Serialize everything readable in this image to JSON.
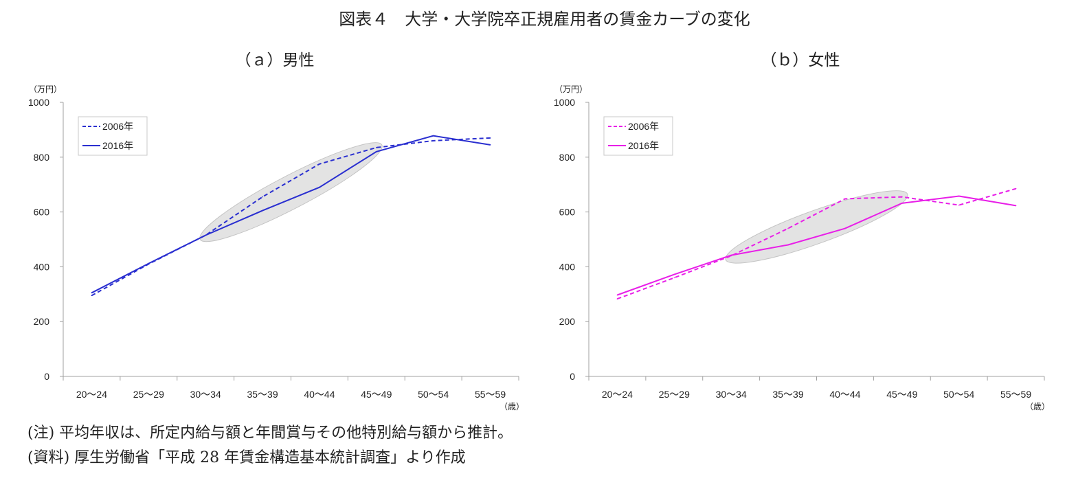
{
  "figure_title": "図表４　大学・大学院卒正規雇用者の賃金カーブの変化",
  "notes": {
    "note": "(注) 平均年収は、所定内給与額と年間賞与その他特別給与額から推計。",
    "source": "(資料) 厚生労働省「平成 28 年賃金構造基本統計調査」より作成"
  },
  "chart_data": [
    {
      "type": "line",
      "title": "（ａ）男性",
      "y_unit": "（万円）",
      "x_unit": "（歳）",
      "categories": [
        "20〜24",
        "25〜29",
        "30〜34",
        "35〜39",
        "40〜44",
        "45〜49",
        "50〜54",
        "55〜59"
      ],
      "ylim": [
        0,
        1000
      ],
      "yticks": [
        0,
        200,
        400,
        600,
        800,
        1000
      ],
      "grid": false,
      "legend_position": "top-left",
      "color": "#2a2fd0",
      "highlight": {
        "from_category": "30〜34",
        "to_category": "45〜49",
        "color": "#d9d9d9"
      },
      "series": [
        {
          "name": "2006年",
          "style": "dashed",
          "values": [
            295,
            410,
            515,
            655,
            775,
            835,
            860,
            870
          ]
        },
        {
          "name": "2016年",
          "style": "solid",
          "values": [
            305,
            412,
            515,
            605,
            690,
            820,
            878,
            845
          ]
        }
      ]
    },
    {
      "type": "line",
      "title": "（ｂ）女性",
      "y_unit": "（万円）",
      "x_unit": "（歳）",
      "categories": [
        "20〜24",
        "25〜29",
        "30〜34",
        "35〜39",
        "40〜44",
        "45〜49",
        "50〜54",
        "55〜59"
      ],
      "ylim": [
        0,
        1000
      ],
      "yticks": [
        0,
        200,
        400,
        600,
        800,
        1000
      ],
      "grid": false,
      "legend_position": "top-left",
      "color": "#e81fe8",
      "highlight": {
        "from_category": "30〜34",
        "to_category": "45〜49",
        "color": "#d9d9d9"
      },
      "series": [
        {
          "name": "2006年",
          "style": "dashed",
          "values": [
            283,
            360,
            440,
            540,
            648,
            655,
            625,
            685
          ]
        },
        {
          "name": "2016年",
          "style": "solid",
          "values": [
            297,
            372,
            442,
            480,
            540,
            632,
            658,
            623
          ]
        }
      ]
    }
  ]
}
